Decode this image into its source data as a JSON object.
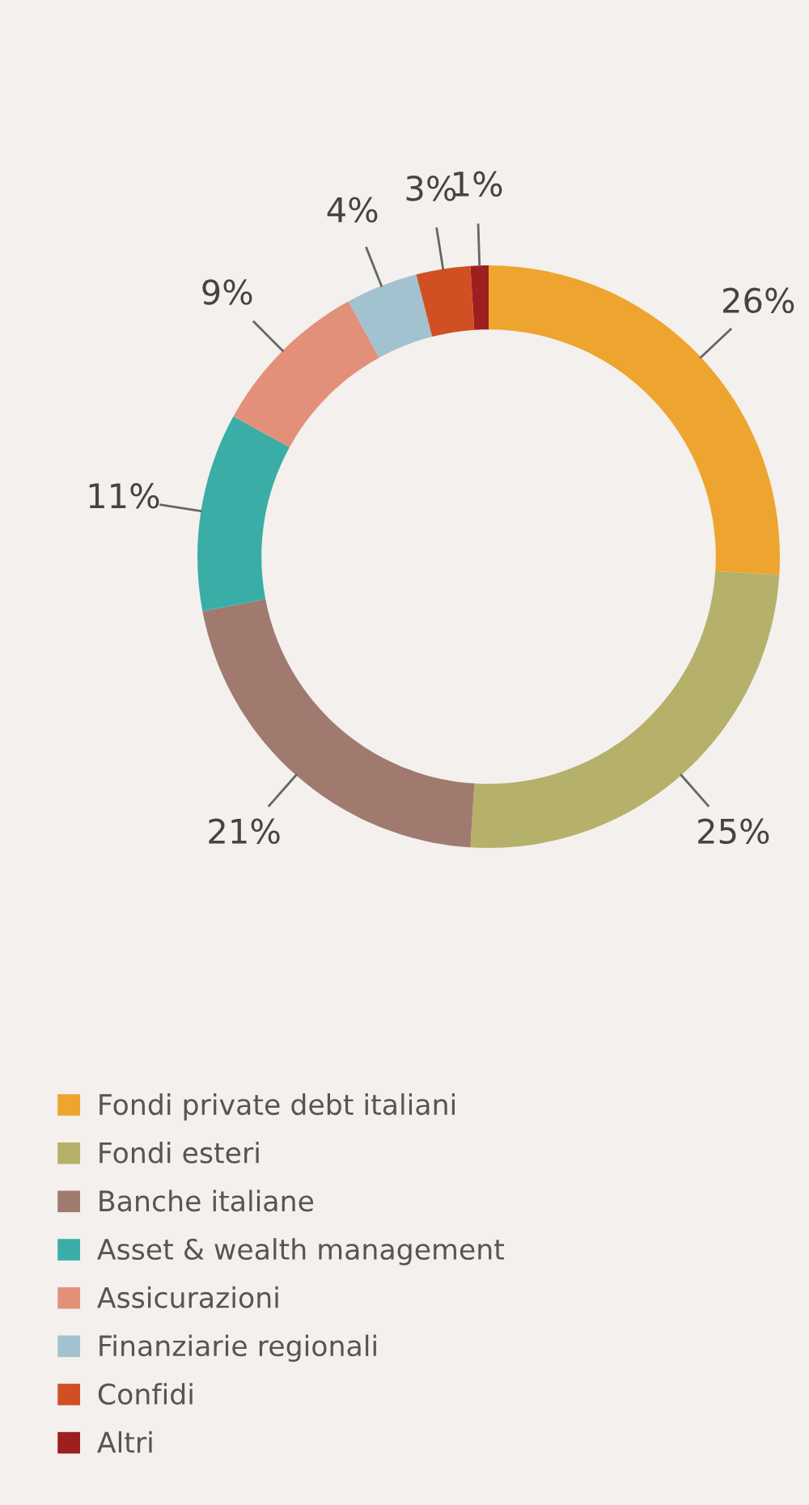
{
  "chart_data": {
    "type": "donut",
    "categories": [
      "Fondi private debt italiani",
      "Fondi esteri",
      "Banche italiane",
      "Asset & wealth management",
      "Assicurazioni",
      "Finanziarie regionali",
      "Confidi",
      "Altri"
    ],
    "values": [
      26,
      25,
      21,
      11,
      9,
      4,
      3,
      1
    ],
    "value_labels": [
      "26%",
      "25%",
      "21%",
      "11%",
      "9%",
      "4%",
      "3%",
      "1%"
    ],
    "colors": [
      "#eda52f",
      "#b5b06a",
      "#a07a6f",
      "#3aaea6",
      "#e3907a",
      "#a3c2cf",
      "#d05024",
      "#9e1f1f"
    ],
    "legend": "bottom"
  }
}
